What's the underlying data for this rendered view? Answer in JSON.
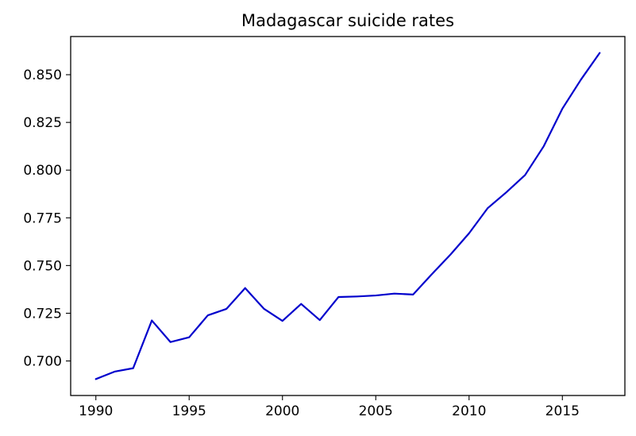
{
  "chart_data": {
    "type": "line",
    "title": "Madagascar suicide rates",
    "xlabel": "",
    "ylabel": "",
    "x": [
      1990,
      1991,
      1992,
      1993,
      1994,
      1995,
      1996,
      1997,
      1998,
      1999,
      2000,
      2001,
      2002,
      2003,
      2004,
      2005,
      2006,
      2007,
      2008,
      2009,
      2010,
      2011,
      2012,
      2013,
      2014,
      2015,
      2016,
      2017
    ],
    "series": [
      {
        "values": [
          0.6905,
          0.6944,
          0.6962,
          0.7212,
          0.7099,
          0.7124,
          0.7239,
          0.7273,
          0.7382,
          0.7274,
          0.721,
          0.7299,
          0.7214,
          0.7335,
          0.7338,
          0.7343,
          0.7353,
          0.7348,
          0.7454,
          0.7557,
          0.7669,
          0.7801,
          0.7884,
          0.7974,
          0.8125,
          0.8322,
          0.8475,
          0.8614
        ],
        "color": "#0000cc"
      }
    ],
    "xticks": [
      "1990",
      "1995",
      "2000",
      "2005",
      "2010",
      "2015"
    ],
    "yticks": [
      "0.700",
      "0.725",
      "0.750",
      "0.775",
      "0.800",
      "0.825",
      "0.850"
    ],
    "xlim": [
      1988.65,
      2018.35
    ],
    "ylim": [
      0.6819,
      0.87
    ],
    "grid": false,
    "legend": "none"
  }
}
